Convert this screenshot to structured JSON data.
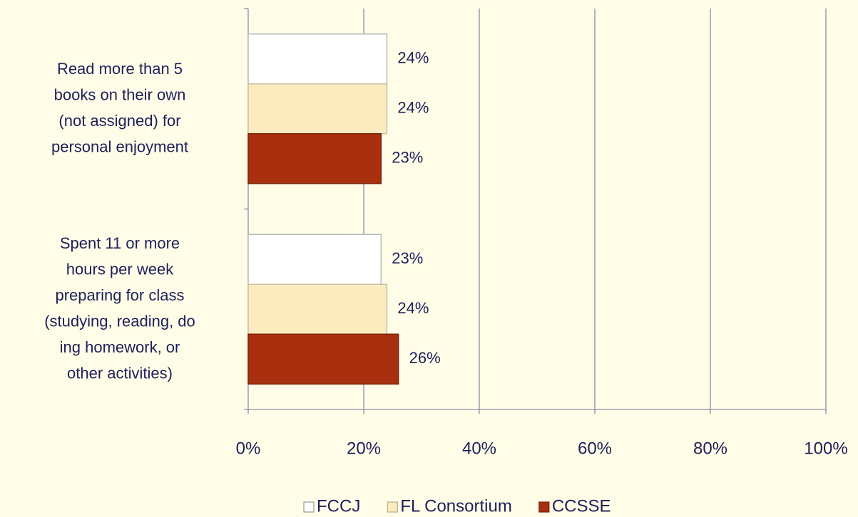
{
  "chart_data": {
    "type": "barh",
    "categories": [
      [
        "Read more than 5",
        "books on their own",
        "(not assigned) for",
        "personal enjoyment"
      ],
      [
        "Spent 11 or more",
        "hours per week",
        "preparing for class",
        "(studying, reading, do",
        "ing homework, or",
        "other activities)"
      ]
    ],
    "series": [
      {
        "name": "FCCJ",
        "color": "#ffffff",
        "values": [
          24,
          23
        ],
        "value_labels": [
          "24%",
          "23%"
        ]
      },
      {
        "name": "FL Consortium",
        "color": "#fdebc0",
        "values": [
          24,
          24
        ],
        "value_labels": [
          "24%",
          "24%"
        ]
      },
      {
        "name": "CCSSE",
        "color": "#a9300f",
        "values": [
          23,
          26
        ],
        "value_labels": [
          "23%",
          "26%"
        ]
      }
    ],
    "xlim": [
      0,
      100
    ],
    "xticks": [
      {
        "value": 0,
        "label": "0%"
      },
      {
        "value": 20,
        "label": "20%"
      },
      {
        "value": 40,
        "label": "40%"
      },
      {
        "value": 60,
        "label": "60%"
      },
      {
        "value": 80,
        "label": "80%"
      },
      {
        "value": 100,
        "label": "100%"
      }
    ],
    "grid": true,
    "legend": "bottom"
  }
}
